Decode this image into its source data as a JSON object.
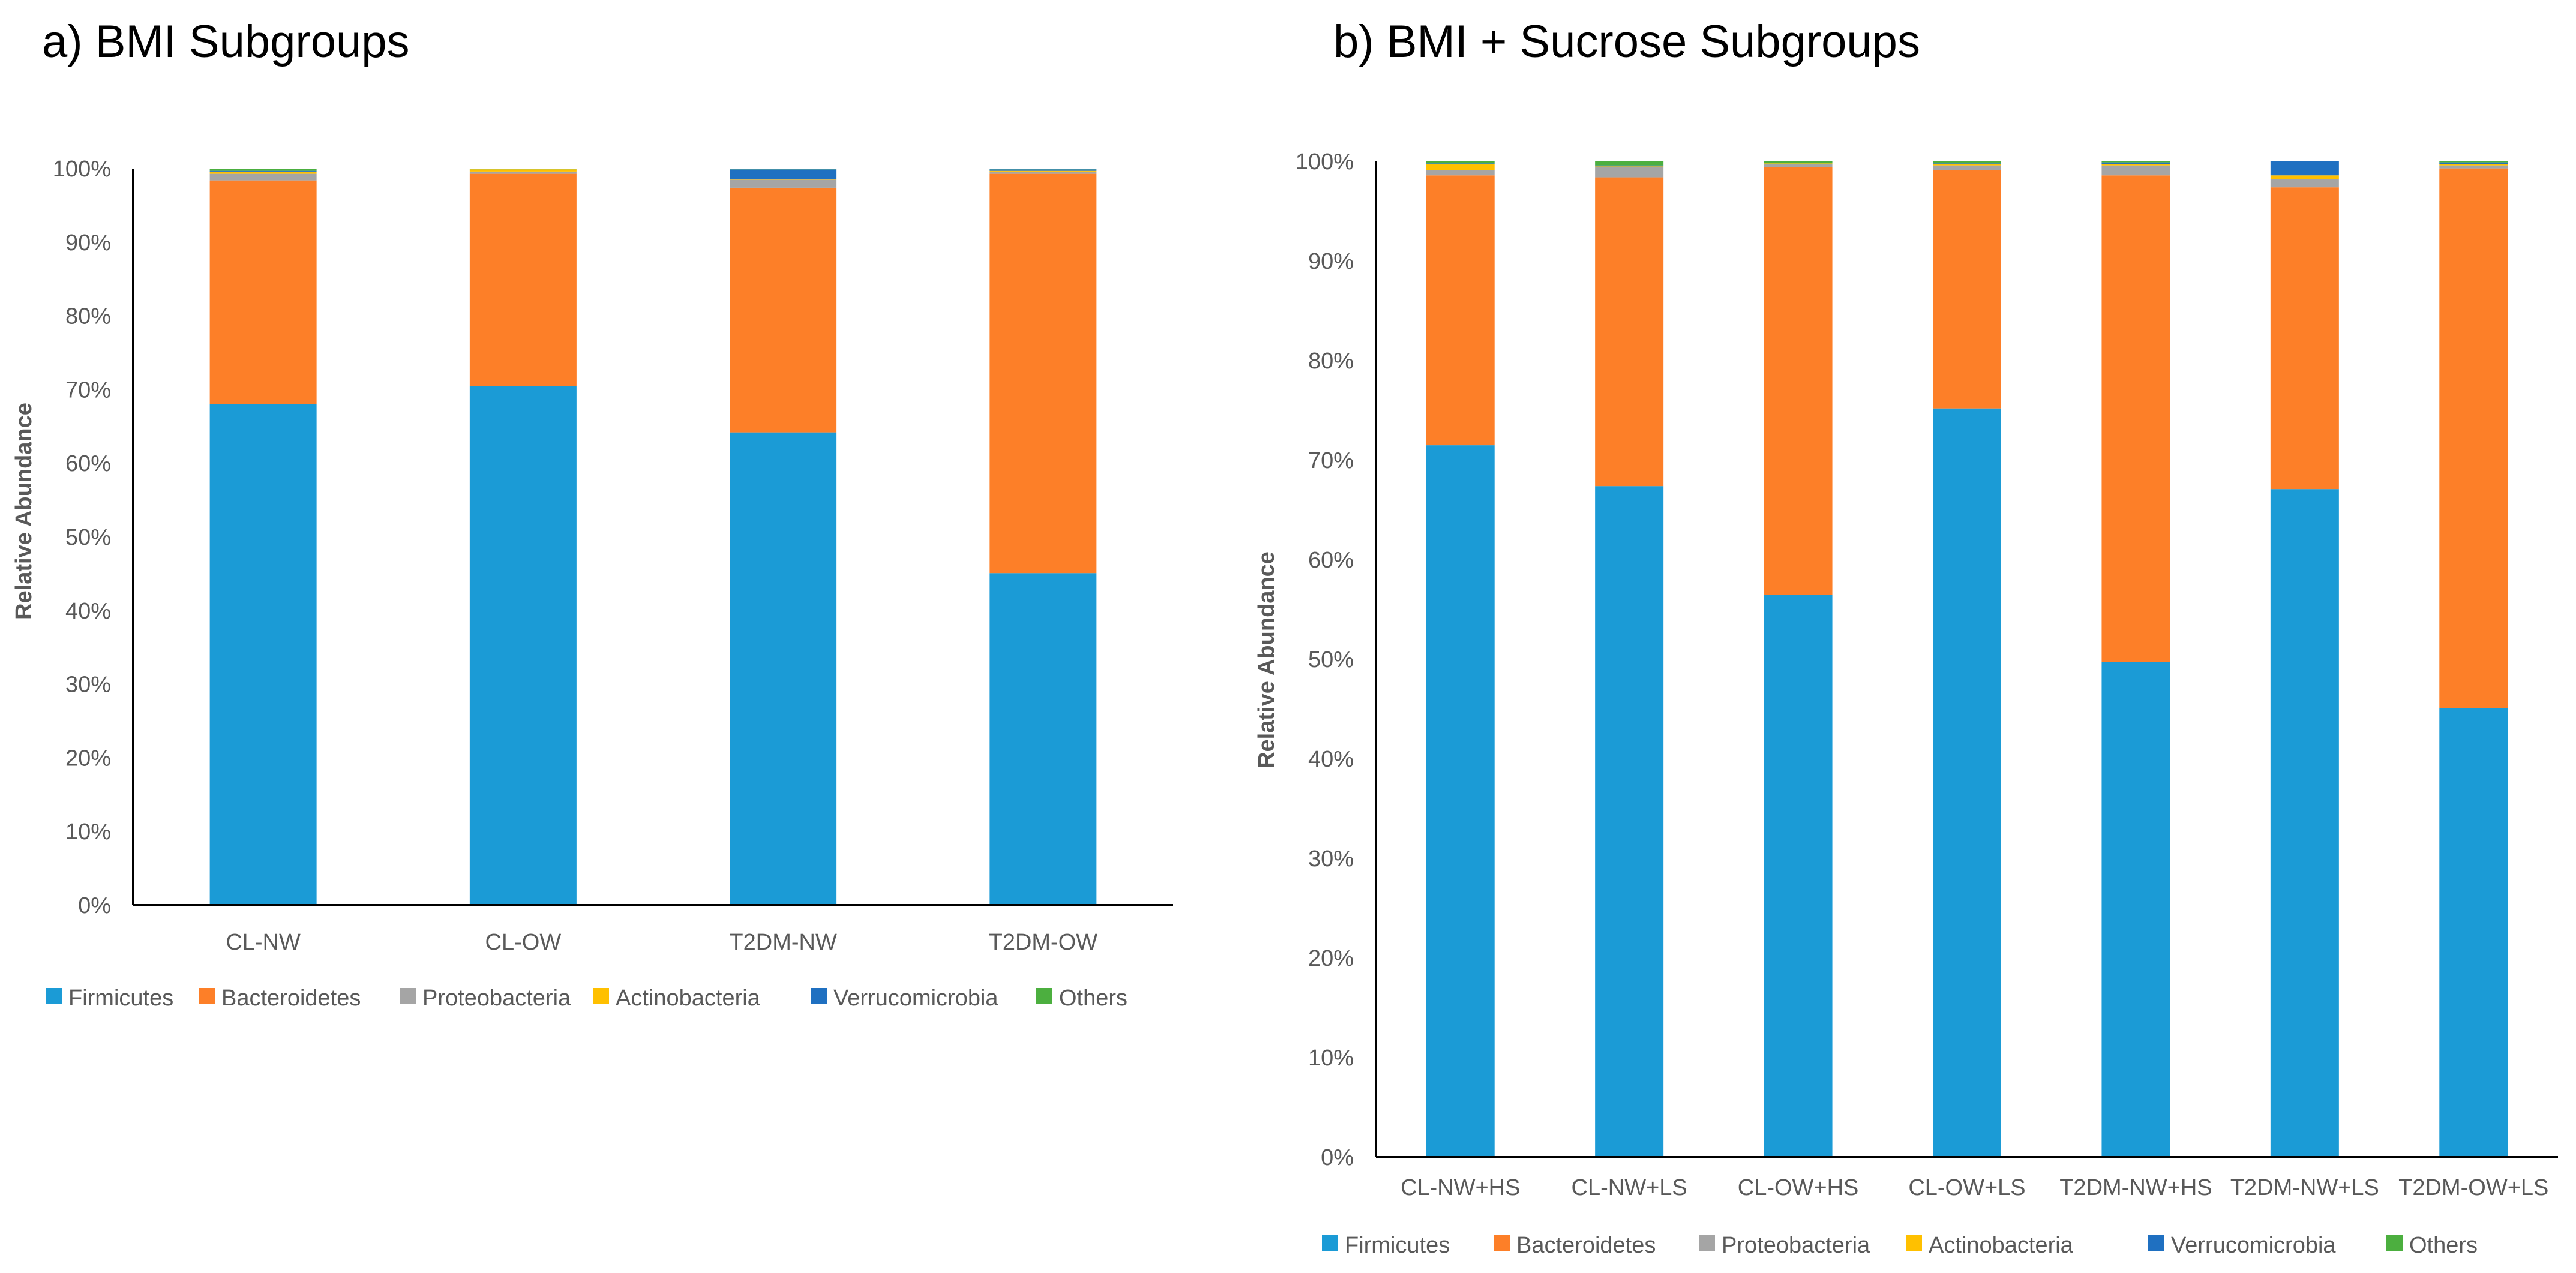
{
  "colors": {
    "Firmicutes": "#1b9bd6",
    "Bacteroidetes": "#fd7f28",
    "Proteobacteria": "#a5a5a5",
    "Actinobacteria": "#ffc000",
    "Verrucomicrobia": "#1f70c1",
    "Others": "#4caf3f"
  },
  "chart_data": [
    {
      "type": "bar",
      "stacked": true,
      "title": "a) BMI Subgroups",
      "xlabel": "",
      "ylabel": "Relative Abundance",
      "ylim": [
        0,
        100
      ],
      "y_ticks": [
        "0%",
        "10%",
        "20%",
        "30%",
        "40%",
        "50%",
        "60%",
        "70%",
        "80%",
        "90%",
        "100%"
      ],
      "legend_position": "bottom",
      "categories": [
        "CL-NW",
        "CL-OW",
        "T2DM-NW",
        "T2DM-OW"
      ],
      "series": [
        {
          "name": "Firmicutes",
          "values": [
            68.0,
            70.5,
            64.2,
            45.1
          ]
        },
        {
          "name": "Bacteroidetes",
          "values": [
            30.4,
            28.8,
            33.2,
            54.2
          ]
        },
        {
          "name": "Proteobacteria",
          "values": [
            0.9,
            0.3,
            1.1,
            0.3
          ]
        },
        {
          "name": "Actinobacteria",
          "values": [
            0.3,
            0.3,
            0.1,
            0.1
          ]
        },
        {
          "name": "Verrucomicrobia",
          "values": [
            0.1,
            0.0,
            1.3,
            0.2
          ]
        },
        {
          "name": "Others",
          "values": [
            0.3,
            0.1,
            0.1,
            0.1
          ]
        }
      ]
    },
    {
      "type": "bar",
      "stacked": true,
      "title": "b) BMI + Sucrose Subgroups",
      "xlabel": "",
      "ylabel": "Relative Abundance",
      "ylim": [
        0,
        100
      ],
      "y_ticks": [
        "0%",
        "10%",
        "20%",
        "30%",
        "40%",
        "50%",
        "60%",
        "70%",
        "80%",
        "90%",
        "100%"
      ],
      "legend_position": "bottom",
      "categories": [
        "CL-NW+HS",
        "CL-NW+LS",
        "CL-OW+HS",
        "CL-OW+LS",
        "T2DM-NW+HS",
        "T2DM-NW+LS",
        "T2DM-OW+LS"
      ],
      "series": [
        {
          "name": "Firmicutes",
          "values": [
            71.5,
            67.4,
            56.5,
            75.2,
            49.7,
            67.1,
            45.1
          ]
        },
        {
          "name": "Bacteroidetes",
          "values": [
            27.1,
            31.0,
            42.9,
            23.9,
            48.9,
            30.3,
            54.2
          ]
        },
        {
          "name": "Proteobacteria",
          "values": [
            0.5,
            1.0,
            0.3,
            0.5,
            1.0,
            0.8,
            0.3
          ]
        },
        {
          "name": "Actinobacteria",
          "values": [
            0.6,
            0.1,
            0.1,
            0.1,
            0.1,
            0.4,
            0.1
          ]
        },
        {
          "name": "Verrucomicrobia",
          "values": [
            0.1,
            0.1,
            0.0,
            0.1,
            0.2,
            1.4,
            0.2
          ]
        },
        {
          "name": "Others",
          "values": [
            0.2,
            0.4,
            0.2,
            0.2,
            0.1,
            0.0,
            0.1
          ]
        }
      ]
    }
  ]
}
